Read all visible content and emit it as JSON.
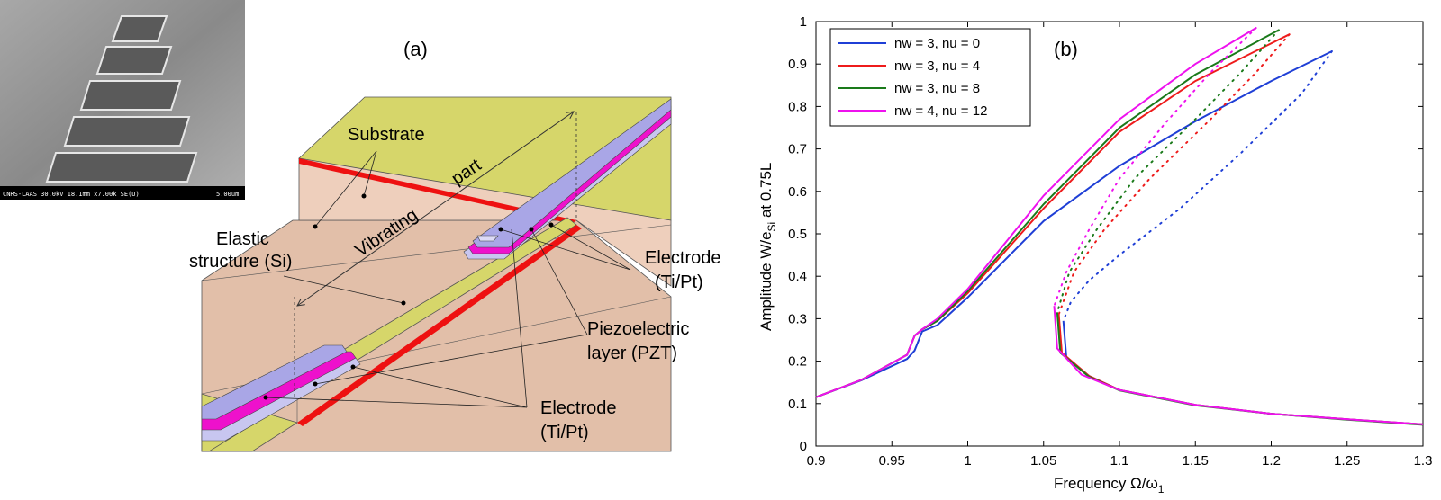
{
  "diagram": {
    "panel_label": "(a)",
    "sem_caption": "CNRS-LAAS 30.0kV 18.1mm x7.00k SE(U)",
    "sem_scale": "5.00um",
    "labels": {
      "substrate": "Substrate",
      "vibrating": "Vibrating",
      "part": "part",
      "elastic_line1": "Elastic",
      "elastic_line2": "structure (Si)",
      "electrode_top_line1": "Electrode",
      "electrode_top_line2": "(Ti/Pt)",
      "piezo_line1": "Piezoelectric",
      "piezo_line2": "layer (PZT)",
      "electrode_bottom_line1": "Electrode",
      "electrode_bottom_line2": "(Ti/Pt)"
    },
    "colors": {
      "substrate_top": "#d6d66a",
      "substrate_side": "#eecfbc",
      "floor": "#e2bfa9",
      "red_edge": "#ee1111",
      "electrode": "#a9a6e6",
      "pzt": "#ee11cc"
    }
  },
  "chart_data": {
    "type": "line",
    "panel_label": "(b)",
    "xlabel": "Frequency Ω/ω",
    "xlabel_sub": "1",
    "ylabel": "Amplitude W/e",
    "ylabel_sub": "Si",
    "ylabel_suffix": " at 0.75L",
    "xlim": [
      0.9,
      1.3
    ],
    "ylim": [
      0,
      1
    ],
    "xticks": [
      "0.9",
      "0.95",
      "1",
      "1.05",
      "1.1",
      "1.15",
      "1.2",
      "1.25",
      "1.3"
    ],
    "yticks": [
      "0",
      "0.1",
      "0.2",
      "0.3",
      "0.4",
      "0.5",
      "0.6",
      "0.7",
      "0.8",
      "0.9",
      "1"
    ],
    "grid": false,
    "legend_position": "top-left",
    "series": [
      {
        "name": "nw = 3, nu = 0",
        "color": "#1f3fd6",
        "stable_upper": [
          [
            0.9,
            0.115
          ],
          [
            0.93,
            0.155
          ],
          [
            0.96,
            0.205
          ],
          [
            0.965,
            0.225
          ],
          [
            0.97,
            0.27
          ],
          [
            0.98,
            0.285
          ],
          [
            1.0,
            0.35
          ],
          [
            1.05,
            0.53
          ],
          [
            1.1,
            0.66
          ],
          [
            1.15,
            0.765
          ],
          [
            1.2,
            0.86
          ],
          [
            1.24,
            0.93
          ]
        ],
        "unstable": [
          [
            1.24,
            0.93
          ],
          [
            1.22,
            0.83
          ],
          [
            1.18,
            0.69
          ],
          [
            1.14,
            0.56
          ],
          [
            1.1,
            0.45
          ],
          [
            1.08,
            0.39
          ],
          [
            1.068,
            0.34
          ],
          [
            1.063,
            0.295
          ]
        ],
        "stable_lower": [
          [
            1.063,
            0.295
          ],
          [
            1.065,
            0.21
          ],
          [
            1.08,
            0.165
          ],
          [
            1.1,
            0.132
          ],
          [
            1.15,
            0.097
          ],
          [
            1.2,
            0.076
          ],
          [
            1.25,
            0.063
          ],
          [
            1.3,
            0.051
          ]
        ]
      },
      {
        "name": "nw = 3, nu = 4",
        "color": "#ee1b1b",
        "stable_upper": [
          [
            0.9,
            0.115
          ],
          [
            0.93,
            0.156
          ],
          [
            0.96,
            0.215
          ],
          [
            0.965,
            0.26
          ],
          [
            0.97,
            0.275
          ],
          [
            0.98,
            0.295
          ],
          [
            1.0,
            0.36
          ],
          [
            1.05,
            0.56
          ],
          [
            1.1,
            0.74
          ],
          [
            1.15,
            0.86
          ],
          [
            1.212,
            0.97
          ]
        ],
        "unstable": [
          [
            1.212,
            0.97
          ],
          [
            1.19,
            0.88
          ],
          [
            1.16,
            0.77
          ],
          [
            1.12,
            0.63
          ],
          [
            1.09,
            0.51
          ],
          [
            1.07,
            0.41
          ],
          [
            1.06,
            0.31
          ]
        ],
        "stable_lower": [
          [
            1.06,
            0.31
          ],
          [
            1.062,
            0.22
          ],
          [
            1.08,
            0.165
          ],
          [
            1.1,
            0.132
          ],
          [
            1.15,
            0.097
          ],
          [
            1.2,
            0.076
          ],
          [
            1.25,
            0.063
          ],
          [
            1.3,
            0.051
          ]
        ]
      },
      {
        "name": "nw = 3, nu = 8",
        "color": "#1a7a1a",
        "stable_upper": [
          [
            0.9,
            0.115
          ],
          [
            0.93,
            0.156
          ],
          [
            0.96,
            0.215
          ],
          [
            0.965,
            0.26
          ],
          [
            0.97,
            0.275
          ],
          [
            0.98,
            0.295
          ],
          [
            1.0,
            0.365
          ],
          [
            1.05,
            0.57
          ],
          [
            1.1,
            0.75
          ],
          [
            1.15,
            0.875
          ],
          [
            1.205,
            0.98
          ]
        ],
        "unstable": [
          [
            1.205,
            0.98
          ],
          [
            1.18,
            0.88
          ],
          [
            1.15,
            0.77
          ],
          [
            1.11,
            0.63
          ],
          [
            1.085,
            0.51
          ],
          [
            1.067,
            0.41
          ],
          [
            1.059,
            0.315
          ]
        ],
        "stable_lower": [
          [
            1.059,
            0.315
          ],
          [
            1.061,
            0.22
          ],
          [
            1.08,
            0.163
          ],
          [
            1.1,
            0.131
          ],
          [
            1.15,
            0.096
          ],
          [
            1.2,
            0.076
          ],
          [
            1.25,
            0.062
          ],
          [
            1.3,
            0.05
          ]
        ]
      },
      {
        "name": "nw = 4, nu = 12",
        "color": "#ee11ee",
        "stable_upper": [
          [
            0.9,
            0.115
          ],
          [
            0.93,
            0.156
          ],
          [
            0.96,
            0.215
          ],
          [
            0.965,
            0.26
          ],
          [
            0.97,
            0.275
          ],
          [
            0.98,
            0.3
          ],
          [
            1.0,
            0.37
          ],
          [
            1.05,
            0.59
          ],
          [
            1.1,
            0.77
          ],
          [
            1.15,
            0.9
          ],
          [
            1.19,
            0.985
          ]
        ],
        "unstable": [
          [
            1.19,
            0.985
          ],
          [
            1.16,
            0.88
          ],
          [
            1.13,
            0.76
          ],
          [
            1.1,
            0.63
          ],
          [
            1.08,
            0.51
          ],
          [
            1.065,
            0.41
          ],
          [
            1.057,
            0.33
          ]
        ],
        "stable_lower": [
          [
            1.057,
            0.33
          ],
          [
            1.059,
            0.23
          ],
          [
            1.075,
            0.168
          ],
          [
            1.1,
            0.132
          ],
          [
            1.15,
            0.097
          ],
          [
            1.2,
            0.076
          ],
          [
            1.25,
            0.063
          ],
          [
            1.3,
            0.051
          ]
        ]
      }
    ]
  }
}
